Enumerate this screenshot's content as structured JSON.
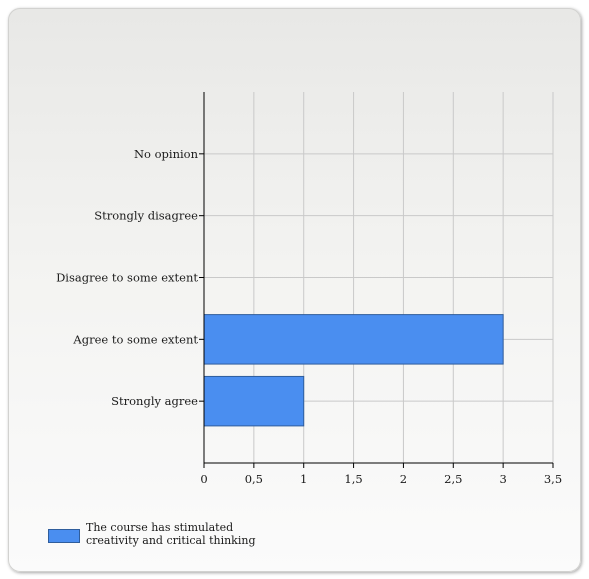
{
  "chart_data": {
    "type": "bar",
    "orientation": "horizontal",
    "categories": [
      "No opinion",
      "Strongly disagree",
      "Disagree to some extent",
      "Agree to some extent",
      "Strongly agree"
    ],
    "series": [
      {
        "name": "The course has stimulated creativity and critical thinking",
        "values": [
          0,
          0,
          0,
          3,
          1
        ]
      }
    ],
    "xlim": [
      0,
      3.5
    ],
    "x_ticks": [
      "0",
      "0,5",
      "1",
      "1,5",
      "2",
      "2,5",
      "3",
      "3,5"
    ],
    "grid": true,
    "legend_position": "bottom-left",
    "bar_color": "#4a8ef0",
    "bar_edge_color": "#2f5d9c"
  }
}
